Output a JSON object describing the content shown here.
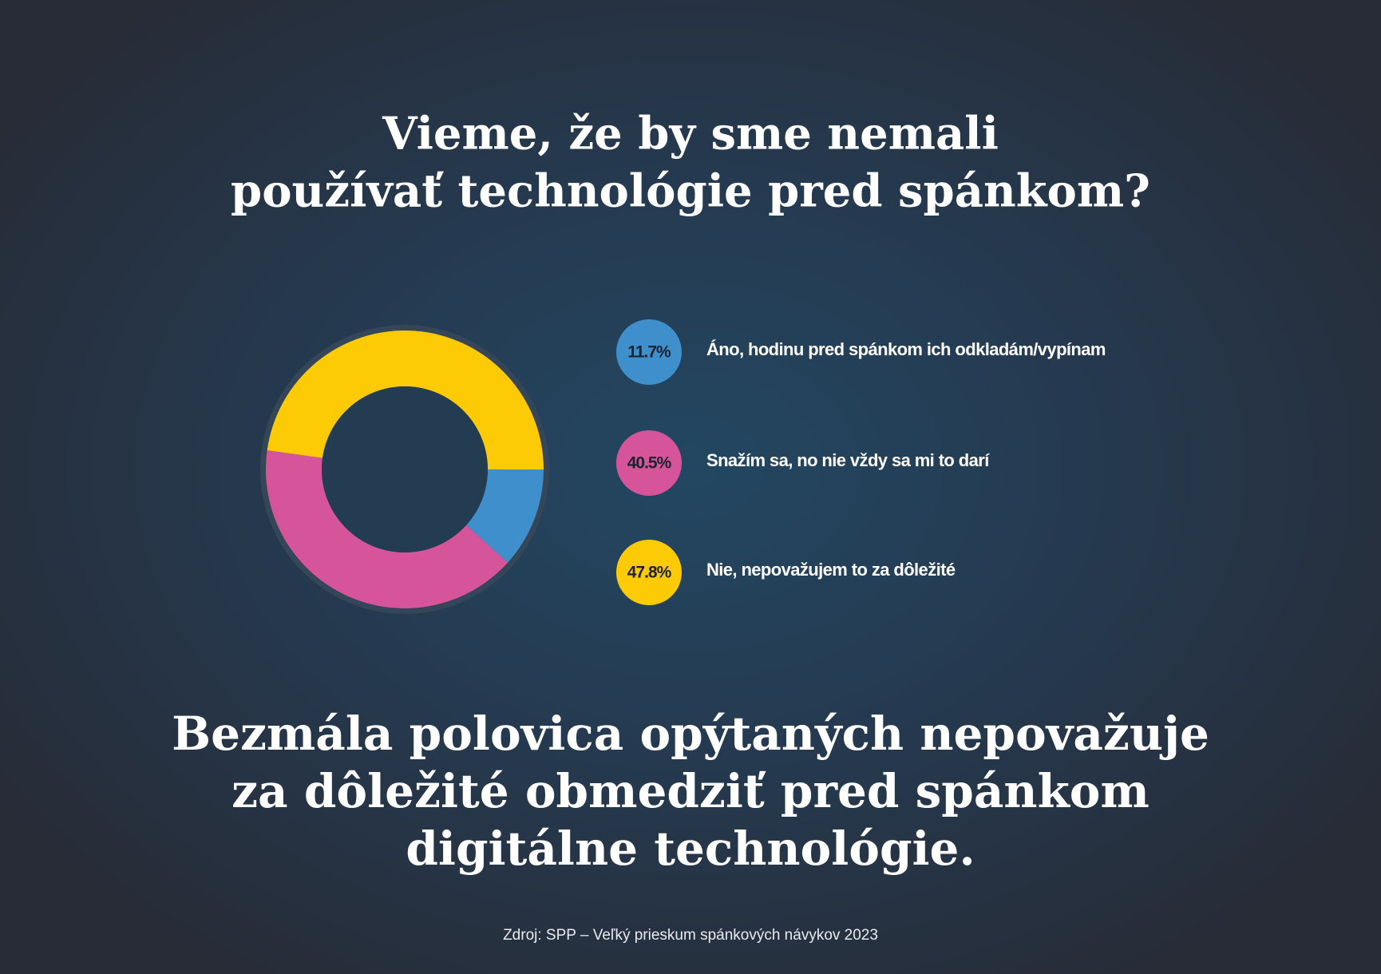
{
  "chart_data": {
    "type": "pie",
    "title": [
      "Vieme, že by sme nemali",
      "používať technológie pred spánkom?"
    ],
    "categories": [
      "Áno, hodinu pred spánkom ich odkladám/vypínam",
      "Snažím sa, no nie vždy sa mi to darí",
      "Nie, nepovažujem to za dôležité"
    ],
    "values": [
      11.7,
      40.5,
      47.8
    ],
    "value_labels": [
      "11.7%",
      "40.5%",
      "47.8%"
    ],
    "colors": [
      "#3f8fcd",
      "#d6559a",
      "#fccb05"
    ],
    "annotation": [
      "Bezmála polovica opýtaných nepovažuje",
      "za dôležité obmedziť pred spánkom",
      "digitálne technológie."
    ],
    "source": "Zdroj: SPP – Veľký prieskum spánkových návykov 2023"
  }
}
